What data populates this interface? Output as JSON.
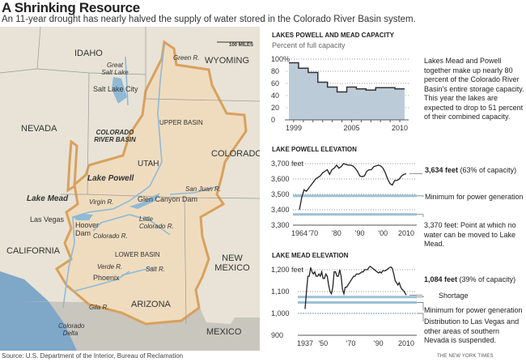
{
  "title": "A Shrinking Resource",
  "subtitle": "An 11-year drought has nearly halved the supply of water stored in the Colorado River Basin system.",
  "map": {
    "scale": "100 MILES",
    "states": [
      "IDAHO",
      "WYOMING",
      "NEVADA",
      "UTAH",
      "COLORADO",
      "CALIFORNIA",
      "ARIZONA",
      "NEW MEXICO",
      "MEXICO"
    ],
    "regions": {
      "basin": "COLORADO RIVER BASIN",
      "upper": "UPPER BASIN",
      "lower": "LOWER BASIN"
    },
    "lakes": {
      "powell": "Lake Powell",
      "mead": "Lake Mead",
      "salt": "Great Salt Lake"
    },
    "cities": {
      "slc": "Salt Lake City",
      "lv": "Las Vegas",
      "phx": "Phoenix"
    },
    "dams": {
      "glen": "Glen Canyon Dam",
      "hoover": "Hoover Dam"
    },
    "rivers": {
      "green": "Green R.",
      "sanjuan": "San Juan R.",
      "virgin": "Virgin R.",
      "colorado": "Colorado R.",
      "little": "Little Colorado R.",
      "verde": "Verde R.",
      "salt": "Salt R.",
      "gila": "Gila R.",
      "delta": "Colorado Delta"
    },
    "colors": {
      "basin_outline": "#d9a15c",
      "water": "#8fb9d6",
      "land": "#e6e1d4"
    }
  },
  "source": "Source: U.S. Department of the Interior, Bureau of Reclamation",
  "credit": "THE NEW YORK TIMES",
  "chart_data": [
    {
      "type": "area",
      "title": "LAKES POWELL AND MEAD CAPACITY",
      "subtitle": "Percent of full capacity",
      "x": [
        1999,
        2000,
        2001,
        2002,
        2003,
        2004,
        2005,
        2006,
        2007,
        2008,
        2009,
        2010
      ],
      "values": [
        94,
        85,
        78,
        62,
        54,
        46,
        54,
        51,
        49,
        53,
        53,
        51
      ],
      "ylim": [
        0,
        100
      ],
      "yticks": [
        "100%",
        "80",
        "60",
        "40",
        "20",
        "0"
      ],
      "xticks": [
        "1999",
        "2005",
        "2010"
      ],
      "annotation": "Lakes Mead and Powell together make up nearly 80 percent of the Colorado River Basin's entire storage capacity. This year the lakes are expected to drop to 51 percent of their combined capacity.",
      "fill": "#bccbd8"
    },
    {
      "type": "line",
      "title": "LAKE POWELL ELEVATION",
      "ylim": [
        3300,
        3700
      ],
      "yticks": [
        "3,700 feet",
        "3,600",
        "3,500",
        "3,400",
        "3,300"
      ],
      "xticks": [
        "1964",
        "'70",
        "'80",
        "'90",
        "'00",
        "2010"
      ],
      "x": [
        1964,
        1965,
        1966,
        1967,
        1968,
        1969,
        1970,
        1971,
        1972,
        1973,
        1974,
        1975,
        1976,
        1977,
        1978,
        1979,
        1980,
        1981,
        1982,
        1983,
        1984,
        1985,
        1986,
        1987,
        1988,
        1989,
        1990,
        1991,
        1992,
        1993,
        1994,
        1995,
        1996,
        1997,
        1998,
        1999,
        2000,
        2001,
        2002,
        2003,
        2004,
        2005,
        2006,
        2007,
        2008,
        2009,
        2010
      ],
      "values": [
        3400,
        3480,
        3530,
        3520,
        3540,
        3560,
        3580,
        3600,
        3610,
        3620,
        3640,
        3650,
        3660,
        3630,
        3660,
        3670,
        3690,
        3670,
        3680,
        3700,
        3695,
        3690,
        3690,
        3685,
        3670,
        3650,
        3620,
        3615,
        3620,
        3650,
        3660,
        3660,
        3680,
        3685,
        3690,
        3685,
        3670,
        3640,
        3600,
        3570,
        3560,
        3590,
        3590,
        3600,
        3620,
        3630,
        3634
      ],
      "thresholds": [
        {
          "value": 3490,
          "label": "Minimum for power generation"
        },
        {
          "value": 3370,
          "label": "3,370 feet: Point at which no water can be moved to Lake Mead."
        }
      ],
      "current": {
        "bold": "3,634 feet",
        "rest": " (63% of capacity)"
      }
    },
    {
      "type": "line",
      "title": "LAKE MEAD ELEVATION",
      "ylim": [
        900,
        1200
      ],
      "yticks": [
        "1,200 feet",
        "1,100",
        "1,000",
        "900"
      ],
      "xticks": [
        "1937",
        "'50",
        "'70",
        "'90",
        "2010"
      ],
      "x": [
        1937,
        1938,
        1939,
        1940,
        1941,
        1942,
        1943,
        1944,
        1945,
        1946,
        1947,
        1948,
        1949,
        1950,
        1951,
        1952,
        1953,
        1954,
        1955,
        1956,
        1957,
        1958,
        1959,
        1960,
        1961,
        1962,
        1963,
        1964,
        1965,
        1966,
        1967,
        1968,
        1969,
        1970,
        1971,
        1972,
        1973,
        1974,
        1975,
        1976,
        1977,
        1978,
        1979,
        1980,
        1981,
        1982,
        1983,
        1984,
        1985,
        1986,
        1987,
        1988,
        1989,
        1990,
        1991,
        1992,
        1993,
        1994,
        1995,
        1996,
        1997,
        1998,
        1999,
        2000,
        2001,
        2002,
        2003,
        2004,
        2005,
        2006,
        2007,
        2008,
        2009,
        2010
      ],
      "values": [
        1020,
        1100,
        1170,
        1170,
        1210,
        1190,
        1180,
        1190,
        1170,
        1170,
        1180,
        1170,
        1190,
        1160,
        1160,
        1180,
        1170,
        1130,
        1100,
        1090,
        1120,
        1190,
        1190,
        1170,
        1170,
        1200,
        1170,
        1110,
        1090,
        1120,
        1120,
        1130,
        1140,
        1150,
        1160,
        1170,
        1170,
        1180,
        1180,
        1180,
        1185,
        1190,
        1190,
        1200,
        1200,
        1200,
        1210,
        1215,
        1210,
        1205,
        1200,
        1195,
        1190,
        1185,
        1190,
        1185,
        1195,
        1195,
        1195,
        1200,
        1205,
        1210,
        1212,
        1205,
        1180,
        1150,
        1140,
        1130,
        1140,
        1120,
        1110,
        1105,
        1095,
        1084
      ],
      "thresholds": [
        {
          "value": 1075,
          "label": "Shortage"
        },
        {
          "value": 1050,
          "label": "Minimum for power generation"
        },
        {
          "value": 1000,
          "label": "Distribution to Las Vegas and other areas of southern Nevada is suspended."
        }
      ],
      "current": {
        "bold": "1,084 feet",
        "rest": " (39% of capacity)"
      }
    }
  ]
}
